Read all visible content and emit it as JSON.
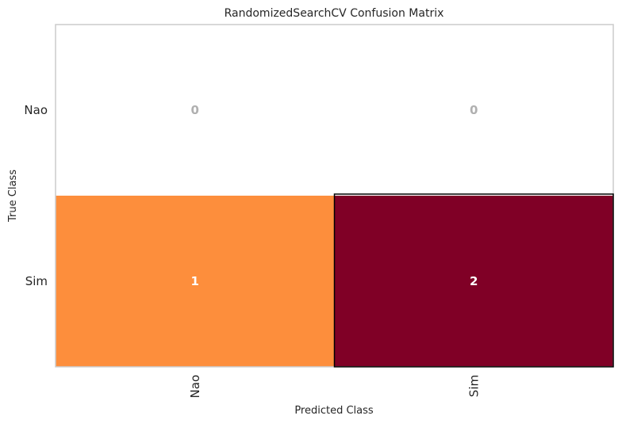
{
  "chart_data": {
    "type": "heatmap",
    "title": "RandomizedSearchCV Confusion Matrix",
    "xlabel": "Predicted Class",
    "ylabel": "True Class",
    "x_categories": [
      "Nao",
      "Sim"
    ],
    "y_categories": [
      "Nao",
      "Sim"
    ],
    "matrix": [
      [
        0,
        0
      ],
      [
        1,
        2
      ]
    ],
    "cell_labels": [
      [
        "0",
        "0"
      ],
      [
        "1",
        "2"
      ]
    ],
    "colors": {
      "zero": "#ffffff",
      "low": "#fd8e3c",
      "high": "#800026",
      "zero_text": "#b0b0b0",
      "nonzero_text": "#ffffff",
      "frame": "#cccccc",
      "highlight_border": "#000000"
    },
    "grid": false
  }
}
